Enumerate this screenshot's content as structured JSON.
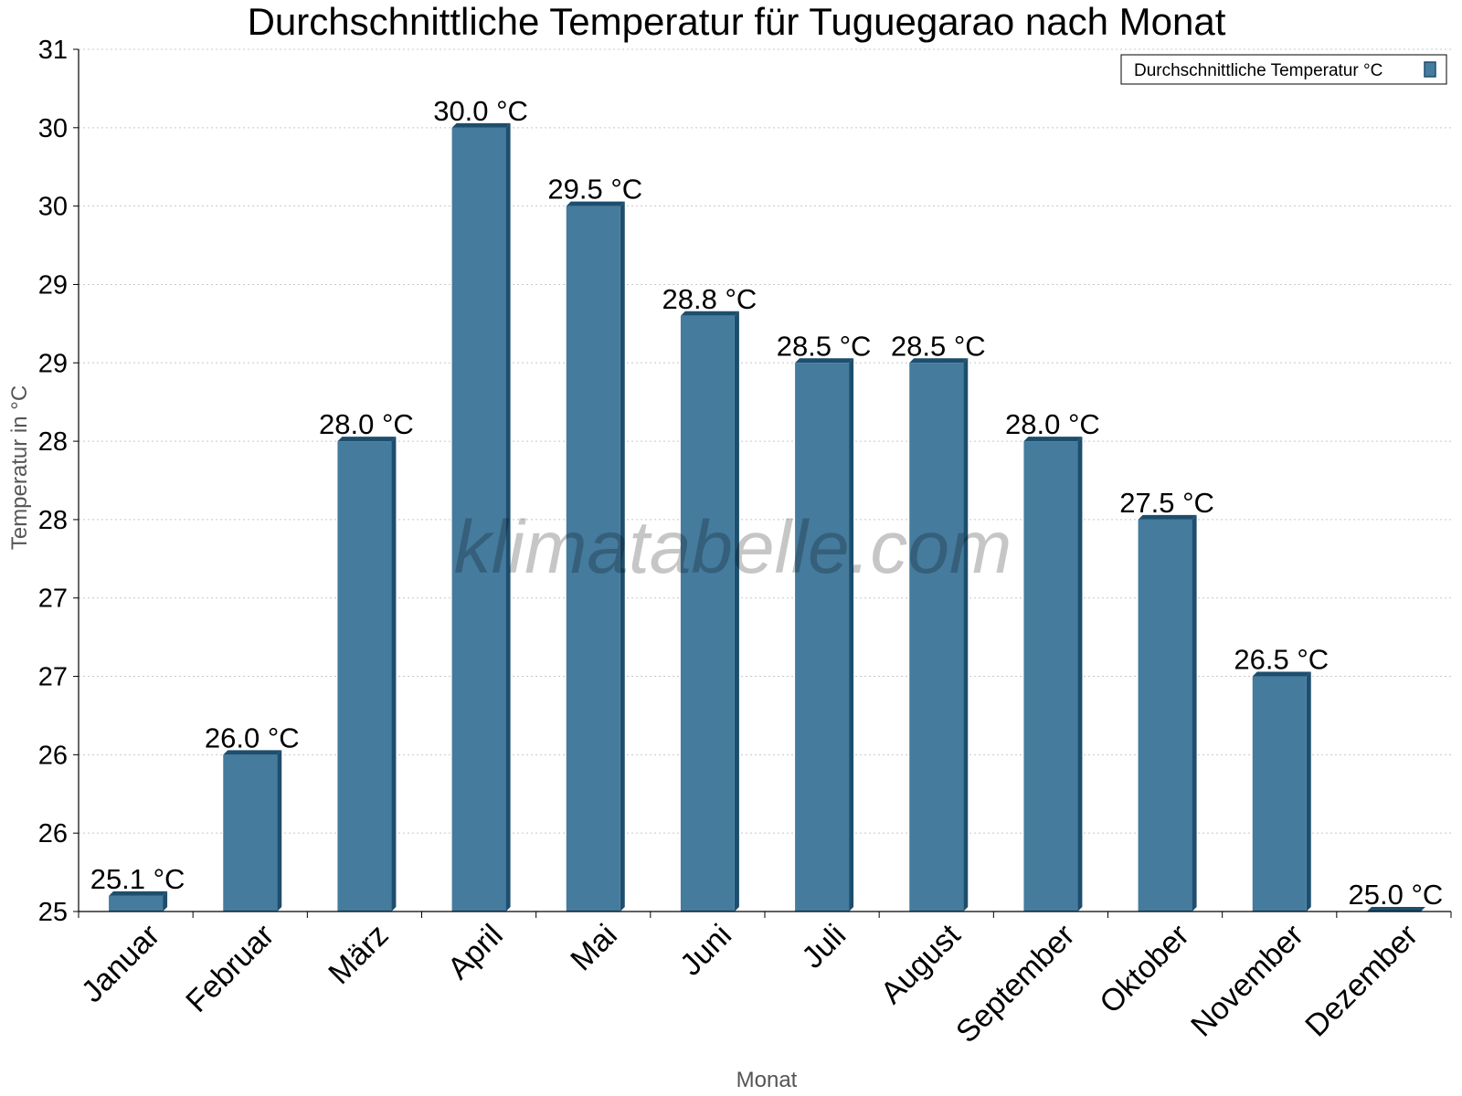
{
  "chart_data": {
    "type": "bar",
    "title": "Durchschnittliche Temperatur für Tuguegarao nach Monat",
    "xlabel": "Monat",
    "ylabel": "Temperatur in °C",
    "ylim": [
      25,
      30.5
    ],
    "y_ticks": [
      25,
      25.5,
      26,
      26.5,
      27,
      27.5,
      28,
      28.5,
      29,
      29.5,
      30,
      30.5
    ],
    "y_tick_labels": [
      "25",
      "26",
      "26",
      "27",
      "27",
      "28",
      "28",
      "29",
      "29",
      "30",
      "30",
      "31"
    ],
    "grid": true,
    "legend_position": "top-right",
    "categories": [
      "Januar",
      "Februar",
      "März",
      "April",
      "Mai",
      "Juni",
      "Juli",
      "August",
      "September",
      "Oktober",
      "November",
      "Dezember"
    ],
    "series": [
      {
        "name": "Durchschnittliche Temperatur °C",
        "color": "#457b9d",
        "values": [
          25.1,
          26.0,
          28.0,
          30.0,
          29.5,
          28.8,
          28.5,
          28.5,
          28.0,
          27.5,
          26.5,
          25.0
        ],
        "labels": [
          "25.1 °C",
          "26.0 °C",
          "28.0 °C",
          "30.0 °C",
          "29.5 °C",
          "28.8 °C",
          "28.5 °C",
          "28.5 °C",
          "28.0 °C",
          "27.5 °C",
          "26.5 °C",
          "25.0 °C"
        ]
      }
    ]
  },
  "watermark": "klimatabelle.com",
  "colors": {
    "bar": "#457b9d",
    "bar_side": "#1d4e6e",
    "grid": "#c8c8c8"
  }
}
